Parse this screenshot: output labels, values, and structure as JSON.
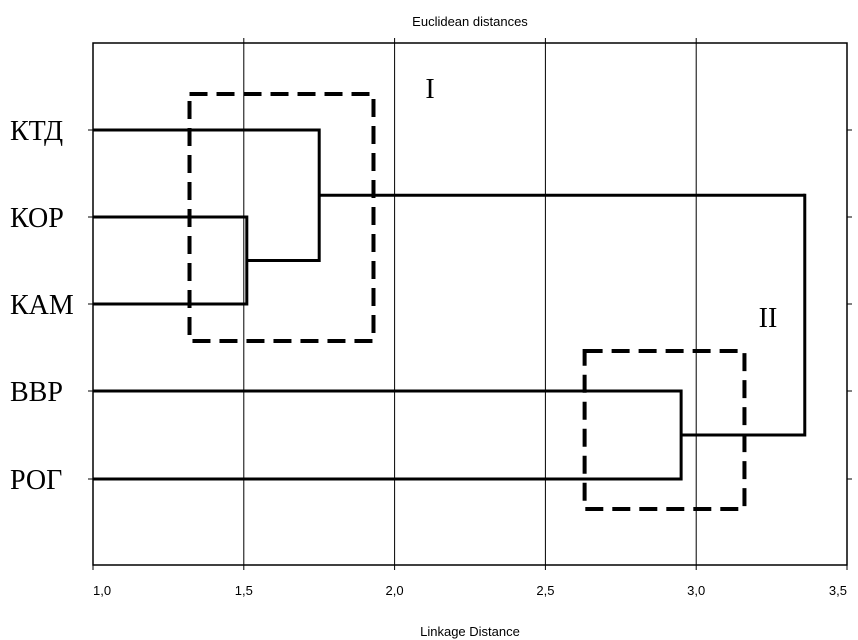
{
  "chart_data": {
    "type": "dendrogram",
    "title": "Euclidean distances",
    "xlabel": "Linkage Distance",
    "xlim": [
      1.0,
      3.5
    ],
    "x_ticks": [
      "1,0",
      "1,5",
      "2,0",
      "2,5",
      "3,0",
      "3,5"
    ],
    "x_tick_values": [
      1.0,
      1.5,
      2.0,
      2.5,
      3.0,
      3.5
    ],
    "grid": "vertical",
    "leaves": [
      "КТД",
      "КОР",
      "КАМ",
      "ВВР",
      "РОГ"
    ],
    "merges": [
      {
        "left": "КОР",
        "right": "КАМ",
        "distance": 1.51
      },
      {
        "left": "КТД",
        "right": "КОР+КАМ",
        "distance": 1.75
      },
      {
        "left": "ВВР",
        "right": "РОГ",
        "distance": 2.95
      },
      {
        "left": "КТД+КОР+КАМ",
        "right": "ВВР+РОГ",
        "distance": 3.36
      }
    ],
    "cluster_boxes": [
      {
        "label": "I",
        "x_range": [
          1.32,
          1.93
        ],
        "leaves_spanned": [
          "КТД",
          "КАМ"
        ]
      },
      {
        "label": "II",
        "x_range": [
          2.63,
          3.16
        ],
        "leaves_spanned": [
          "ВВР",
          "РОГ"
        ]
      }
    ]
  }
}
